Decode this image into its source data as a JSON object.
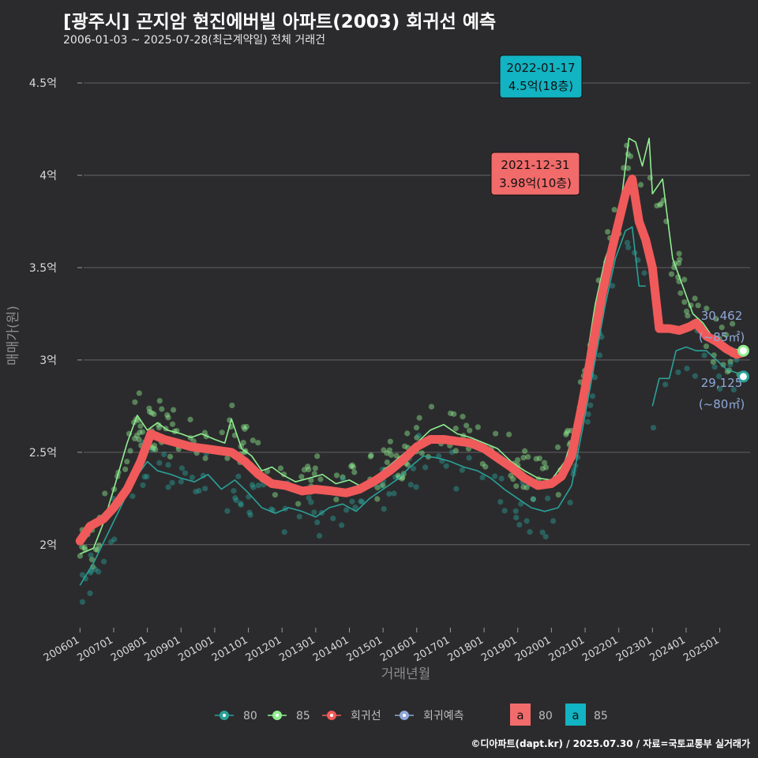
{
  "header": {
    "title": "[광주시] 곤지암 현진에버빌 아파트(2003) 회귀선 예측",
    "subtitle": "2006-01-03 ~ 2025-07-28(최근계약일) 전체 거래건"
  },
  "credit": "©디아파트(dapt.kr) / 2025.07.30 / 자료=국토교통부 실거래가",
  "colors": {
    "s80": "#2aa198",
    "s85": "#90ee90",
    "reg": "#f05a5a",
    "pred": "#8fa8d8",
    "bg": "#2b2b2d",
    "grid": "#5a5a5c"
  },
  "chart_data": {
    "type": "line",
    "xlabel": "거래년월",
    "ylabel": "매매가(원)",
    "x_ticks": [
      "200601",
      "200701",
      "200801",
      "200901",
      "201001",
      "201101",
      "201201",
      "201301",
      "201401",
      "201501",
      "201601",
      "201701",
      "201801",
      "201901",
      "202001",
      "202101",
      "202201",
      "202301",
      "202401",
      "202501"
    ],
    "y_ticks": [
      {
        "value": 2.0,
        "label": "2억"
      },
      {
        "value": 2.5,
        "label": "2.5억"
      },
      {
        "value": 3.0,
        "label": "3억"
      },
      {
        "value": 3.5,
        "label": "3.5억"
      },
      {
        "value": 4.0,
        "label": "4억"
      },
      {
        "value": 4.5,
        "label": "4.5억"
      }
    ],
    "ylim": [
      1.55,
      4.65
    ],
    "xlim": [
      2005.5,
      2025.9
    ],
    "series": [
      {
        "name": "회귀선",
        "color": "#f05a5a",
        "points": [
          [
            2006.0,
            2.02
          ],
          [
            2006.3,
            2.1
          ],
          [
            2006.7,
            2.14
          ],
          [
            2007.0,
            2.2
          ],
          [
            2007.4,
            2.3
          ],
          [
            2007.8,
            2.45
          ],
          [
            2008.1,
            2.6
          ],
          [
            2008.5,
            2.57
          ],
          [
            2008.9,
            2.55
          ],
          [
            2009.3,
            2.53
          ],
          [
            2009.7,
            2.52
          ],
          [
            2010.1,
            2.51
          ],
          [
            2010.5,
            2.5
          ],
          [
            2010.9,
            2.45
          ],
          [
            2011.3,
            2.38
          ],
          [
            2011.7,
            2.33
          ],
          [
            2012.1,
            2.32
          ],
          [
            2012.6,
            2.29
          ],
          [
            2013.0,
            2.3
          ],
          [
            2013.5,
            2.29
          ],
          [
            2013.9,
            2.28
          ],
          [
            2014.3,
            2.3
          ],
          [
            2014.8,
            2.35
          ],
          [
            2015.2,
            2.4
          ],
          [
            2015.6,
            2.46
          ],
          [
            2016.0,
            2.53
          ],
          [
            2016.4,
            2.57
          ],
          [
            2016.8,
            2.57
          ],
          [
            2017.2,
            2.56
          ],
          [
            2017.6,
            2.55
          ],
          [
            2018.0,
            2.52
          ],
          [
            2018.4,
            2.47
          ],
          [
            2018.8,
            2.42
          ],
          [
            2019.2,
            2.36
          ],
          [
            2019.6,
            2.32
          ],
          [
            2020.0,
            2.33
          ],
          [
            2020.3,
            2.37
          ],
          [
            2020.6,
            2.48
          ],
          [
            2020.9,
            2.75
          ],
          [
            2021.2,
            3.05
          ],
          [
            2021.5,
            3.35
          ],
          [
            2021.8,
            3.6
          ],
          [
            2022.0,
            3.75
          ],
          [
            2022.2,
            3.9
          ],
          [
            2022.4,
            3.98
          ],
          [
            2022.6,
            3.75
          ],
          [
            2022.8,
            3.65
          ],
          [
            2023.0,
            3.5
          ],
          [
            2023.2,
            3.17
          ],
          [
            2023.5,
            3.17
          ],
          [
            2023.8,
            3.16
          ],
          [
            2024.1,
            3.18
          ],
          [
            2024.3,
            3.2
          ],
          [
            2024.6,
            3.13
          ],
          [
            2024.9,
            3.1
          ],
          [
            2025.2,
            3.06
          ],
          [
            2025.5,
            3.03
          ],
          [
            2025.7,
            3.04
          ]
        ]
      },
      {
        "name": "85",
        "color": "#90ee90",
        "points": [
          [
            2006.0,
            1.95
          ],
          [
            2006.4,
            1.98
          ],
          [
            2006.7,
            2.12
          ],
          [
            2007.0,
            2.3
          ],
          [
            2007.4,
            2.55
          ],
          [
            2007.7,
            2.7
          ],
          [
            2008.0,
            2.62
          ],
          [
            2008.3,
            2.66
          ],
          [
            2008.6,
            2.62
          ],
          [
            2009.0,
            2.6
          ],
          [
            2009.3,
            2.58
          ],
          [
            2009.6,
            2.6
          ],
          [
            2010.0,
            2.57
          ],
          [
            2010.3,
            2.55
          ],
          [
            2010.5,
            2.68
          ],
          [
            2010.8,
            2.52
          ],
          [
            2011.1,
            2.48
          ],
          [
            2011.4,
            2.4
          ],
          [
            2011.7,
            2.42
          ],
          [
            2012.0,
            2.38
          ],
          [
            2012.4,
            2.34
          ],
          [
            2012.8,
            2.36
          ],
          [
            2013.2,
            2.38
          ],
          [
            2013.6,
            2.33
          ],
          [
            2014.0,
            2.35
          ],
          [
            2014.4,
            2.31
          ],
          [
            2014.8,
            2.37
          ],
          [
            2015.2,
            2.43
          ],
          [
            2015.6,
            2.49
          ],
          [
            2016.0,
            2.55
          ],
          [
            2016.4,
            2.62
          ],
          [
            2016.8,
            2.65
          ],
          [
            2017.2,
            2.6
          ],
          [
            2017.6,
            2.58
          ],
          [
            2018.0,
            2.55
          ],
          [
            2018.4,
            2.52
          ],
          [
            2018.8,
            2.45
          ],
          [
            2019.2,
            2.4
          ],
          [
            2019.6,
            2.36
          ],
          [
            2020.0,
            2.35
          ],
          [
            2020.4,
            2.45
          ],
          [
            2020.7,
            2.62
          ],
          [
            2021.0,
            2.95
          ],
          [
            2021.3,
            3.3
          ],
          [
            2021.6,
            3.55
          ],
          [
            2021.9,
            3.7
          ],
          [
            2022.1,
            3.9
          ],
          [
            2022.3,
            4.2
          ],
          [
            2022.5,
            4.18
          ],
          [
            2022.7,
            4.05
          ],
          [
            2022.9,
            4.2
          ],
          [
            2023.0,
            3.9
          ],
          [
            2023.3,
            3.98
          ],
          [
            2023.6,
            3.55
          ],
          [
            2023.9,
            3.4
          ],
          [
            2024.2,
            3.25
          ],
          [
            2024.5,
            3.2
          ],
          [
            2024.8,
            3.12
          ],
          [
            2025.1,
            3.08
          ],
          [
            2025.4,
            3.06
          ],
          [
            2025.7,
            3.05
          ]
        ]
      },
      {
        "name": "80",
        "color": "#2aa198",
        "points": [
          [
            2006.0,
            1.78
          ],
          [
            2006.4,
            1.9
          ],
          [
            2006.8,
            2.05
          ],
          [
            2007.2,
            2.2
          ],
          [
            2007.6,
            2.35
          ],
          [
            2008.0,
            2.45
          ],
          [
            2008.3,
            2.4
          ],
          [
            2008.7,
            2.38
          ],
          [
            2009.0,
            2.36
          ],
          [
            2009.4,
            2.34
          ],
          [
            2009.8,
            2.38
          ],
          [
            2010.2,
            2.3
          ],
          [
            2010.6,
            2.35
          ],
          [
            2011.0,
            2.28
          ],
          [
            2011.4,
            2.2
          ],
          [
            2011.8,
            2.17
          ],
          [
            2012.2,
            2.2
          ],
          [
            2012.6,
            2.18
          ],
          [
            2013.0,
            2.15
          ],
          [
            2013.4,
            2.2
          ],
          [
            2013.8,
            2.22
          ],
          [
            2014.2,
            2.18
          ],
          [
            2014.6,
            2.25
          ],
          [
            2015.0,
            2.3
          ],
          [
            2015.4,
            2.35
          ],
          [
            2015.8,
            2.42
          ],
          [
            2016.2,
            2.48
          ],
          [
            2016.6,
            2.47
          ],
          [
            2017.0,
            2.45
          ],
          [
            2017.4,
            2.42
          ],
          [
            2017.8,
            2.4
          ],
          [
            2018.2,
            2.36
          ],
          [
            2018.6,
            2.3
          ],
          [
            2019.0,
            2.25
          ],
          [
            2019.4,
            2.2
          ],
          [
            2019.8,
            2.18
          ],
          [
            2020.2,
            2.2
          ],
          [
            2020.6,
            2.32
          ],
          [
            2021.0,
            2.7
          ],
          [
            2021.3,
            3.0
          ],
          [
            2021.6,
            3.3
          ],
          [
            2021.9,
            3.55
          ],
          [
            2022.2,
            3.7
          ],
          [
            2022.4,
            3.72
          ],
          [
            2022.6,
            3.4
          ],
          [
            2022.8,
            3.4
          ]
        ]
      },
      {
        "name": "80",
        "color": "#2aa198",
        "points": [
          [
            2023.0,
            2.75
          ],
          [
            2023.2,
            2.9
          ],
          [
            2023.5,
            2.9
          ],
          [
            2023.7,
            3.05
          ],
          [
            2024.0,
            3.07
          ],
          [
            2024.3,
            3.05
          ],
          [
            2024.6,
            3.05
          ],
          [
            2024.9,
            3.0
          ],
          [
            2025.2,
            2.95
          ],
          [
            2025.5,
            2.93
          ],
          [
            2025.7,
            2.91
          ]
        ]
      }
    ],
    "highlights": [
      {
        "series": "회귀선",
        "date": "2021-12-31",
        "price": "3.98억(10층)",
        "x": 2022.4,
        "y": 3.98
      },
      {
        "series": "85",
        "date": "2022-01-17",
        "price": "4.5억(18층)",
        "x": 2022.1,
        "y": 4.5
      }
    ],
    "end_labels": [
      {
        "series": "85",
        "text1": "30,462",
        "text2": "(~85㎡)",
        "x": 2025.7,
        "y": 3.05
      },
      {
        "series": "80",
        "text1": "29,125",
        "text2": "(~80㎡)",
        "x": 2025.7,
        "y": 2.91
      }
    ],
    "legend": {
      "placement": "bottom",
      "items": [
        {
          "label": "80",
          "color": "#2aa198"
        },
        {
          "label": "85",
          "color": "#90ee90"
        },
        {
          "label": "회귀선",
          "color": "#f05a5a"
        },
        {
          "label": "회귀예측",
          "color": "#8fa8d8"
        }
      ],
      "label_items": [
        {
          "label": "80",
          "color": "#f26b6b"
        },
        {
          "label": "85",
          "color": "#12b3c2"
        }
      ],
      "label_glyph": "a"
    }
  }
}
